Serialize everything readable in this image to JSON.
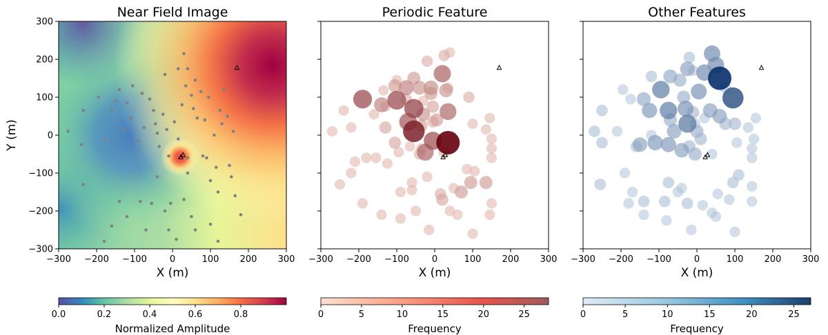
{
  "ylabel": "Y (m)",
  "chart_data": [
    {
      "type": "heatmap",
      "title": "Near Field Image",
      "xlabel": "X (m)",
      "ylabel": "Y (m)",
      "xlim": [
        -300,
        300
      ],
      "ylim": [
        -300,
        300
      ],
      "xticks": [
        -300,
        -200,
        -100,
        0,
        100,
        200,
        300
      ],
      "yticks": [
        -300,
        -200,
        -100,
        0,
        100,
        200,
        300
      ],
      "colormap": "Spectral_r",
      "colorbar": {
        "label": "Normalized Amplitude",
        "range": [
          0,
          1
        ],
        "ticks": [
          0.0,
          0.2,
          0.4,
          0.6,
          0.8
        ],
        "tick_labels": [
          "0.0",
          "0.2",
          "0.4",
          "0.6",
          "0.8"
        ]
      },
      "amplitude_features": {
        "low_center": [
          -95,
          0
        ],
        "high_corner": [
          250,
          185
        ],
        "hotspot": [
          22,
          -58
        ]
      },
      "stations": [
        [
          -235,
          65
        ],
        [
          -240,
          -25
        ],
        [
          -275,
          10
        ],
        [
          -235,
          -130
        ],
        [
          -195,
          100
        ],
        [
          -180,
          -10
        ],
        [
          -160,
          65
        ],
        [
          -150,
          90
        ],
        [
          -140,
          120
        ],
        [
          -130,
          15
        ],
        [
          -120,
          85
        ],
        [
          -110,
          45
        ],
        [
          -105,
          130
        ],
        [
          -90,
          -15
        ],
        [
          -80,
          110
        ],
        [
          -75,
          20
        ],
        [
          -60,
          95
        ],
        [
          -50,
          65
        ],
        [
          -45,
          30
        ],
        [
          -40,
          5
        ],
        [
          -35,
          -30
        ],
        [
          -25,
          55
        ],
        [
          -20,
          160
        ],
        [
          -15,
          15
        ],
        [
          -10,
          -55
        ],
        [
          5,
          35
        ],
        [
          15,
          175
        ],
        [
          15,
          -10
        ],
        [
          25,
          80
        ],
        [
          30,
          215
        ],
        [
          35,
          130
        ],
        [
          40,
          175
        ],
        [
          50,
          105
        ],
        [
          55,
          70
        ],
        [
          60,
          145
        ],
        [
          65,
          45
        ],
        [
          75,
          115
        ],
        [
          80,
          -55
        ],
        [
          85,
          40
        ],
        [
          90,
          -60
        ],
        [
          95,
          100
        ],
        [
          100,
          -120
        ],
        [
          110,
          0
        ],
        [
          115,
          -85
        ],
        [
          125,
          65
        ],
        [
          130,
          30
        ],
        [
          135,
          120
        ],
        [
          145,
          50
        ],
        [
          150,
          -80
        ],
        [
          155,
          -110
        ],
        [
          160,
          10
        ],
        [
          -140,
          -175
        ],
        [
          -120,
          -215
        ],
        [
          -85,
          -175
        ],
        [
          -55,
          -180
        ],
        [
          -40,
          -110
        ],
        [
          -20,
          -200
        ],
        [
          -5,
          -180
        ],
        [
          30,
          -170
        ],
        [
          40,
          -100
        ],
        [
          50,
          -215
        ],
        [
          -10,
          -250
        ],
        [
          100,
          -235
        ],
        [
          120,
          -150
        ],
        [
          165,
          -160
        ],
        [
          180,
          -210
        ],
        [
          60,
          -250
        ],
        [
          -180,
          -280
        ],
        [
          -70,
          -250
        ],
        [
          10,
          -275
        ],
        [
          120,
          -280
        ],
        [
          -160,
          -240
        ],
        [
          40,
          -60
        ]
      ],
      "markers": [
        [
          170,
          178
        ],
        [
          22,
          -58
        ],
        [
          28,
          -52
        ]
      ]
    },
    {
      "type": "scatter",
      "title": "Periodic Feature",
      "xlabel": "X (m)",
      "xlim": [
        -300,
        300
      ],
      "ylim": [
        -300,
        300
      ],
      "xticks": [
        -300,
        -200,
        -100,
        0,
        100,
        200,
        300
      ],
      "yticks": [
        -300,
        -200,
        -100,
        0,
        100,
        200,
        300
      ],
      "colorbar": {
        "label": "Frequency",
        "range": [
          0,
          28
        ],
        "ticks": [
          0,
          5,
          10,
          15,
          20,
          25
        ],
        "tick_labels": [
          "0",
          "5",
          "10",
          "15",
          "20",
          "25"
        ],
        "color_low": "#fee0d2",
        "color_high": "#67000d"
      },
      "points": [
        {
          "x": 35,
          "y": -20,
          "freq": 28
        },
        {
          "x": -55,
          "y": 10,
          "freq": 23
        },
        {
          "x": -190,
          "y": 95,
          "freq": 16
        },
        {
          "x": -100,
          "y": 92,
          "freq": 16
        },
        {
          "x": -55,
          "y": 70,
          "freq": 17
        },
        {
          "x": -70,
          "y": 35,
          "freq": 14
        },
        {
          "x": -5,
          "y": -15,
          "freq": 15
        },
        {
          "x": -25,
          "y": -45,
          "freq": 12
        },
        {
          "x": 20,
          "y": 162,
          "freq": 13
        },
        {
          "x": 35,
          "y": 62,
          "freq": 12
        },
        {
          "x": -140,
          "y": 80,
          "freq": 9
        },
        {
          "x": -75,
          "y": 125,
          "freq": 9
        },
        {
          "x": -10,
          "y": 125,
          "freq": 8
        },
        {
          "x": 30,
          "y": 118,
          "freq": 7
        },
        {
          "x": -40,
          "y": 125,
          "freq": 7
        },
        {
          "x": -30,
          "y": 55,
          "freq": 7
        },
        {
          "x": 5,
          "y": 40,
          "freq": 6
        },
        {
          "x": -130,
          "y": 20,
          "freq": 5
        },
        {
          "x": -105,
          "y": -20,
          "freq": 5
        },
        {
          "x": 95,
          "y": -125,
          "freq": 6
        },
        {
          "x": 135,
          "y": -125,
          "freq": 6
        },
        {
          "x": 70,
          "y": -150,
          "freq": 6
        },
        {
          "x": 20,
          "y": -170,
          "freq": 5
        },
        {
          "x": -105,
          "y": 130,
          "freq": 6
        },
        {
          "x": -55,
          "y": 150,
          "freq": 6
        },
        {
          "x": -10,
          "y": 110,
          "freq": 6
        },
        {
          "x": -5,
          "y": 75,
          "freq": 5
        },
        {
          "x": -35,
          "y": 25,
          "freq": 5
        },
        {
          "x": 25,
          "y": 210,
          "freq": 4
        },
        {
          "x": -20,
          "y": 195,
          "freq": 4
        },
        {
          "x": -5,
          "y": 35,
          "freq": 4
        },
        {
          "x": 90,
          "y": 100,
          "freq": 4
        },
        {
          "x": -40,
          "y": -50,
          "freq": 4
        },
        {
          "x": -75,
          "y": 95,
          "freq": 4
        },
        {
          "x": 25,
          "y": -45,
          "freq": 4
        },
        {
          "x": 15,
          "y": -155,
          "freq": 4
        },
        {
          "x": -130,
          "y": 75,
          "freq": 3
        },
        {
          "x": -95,
          "y": -45,
          "freq": 3
        },
        {
          "x": 35,
          "y": 125,
          "freq": 3
        },
        {
          "x": -135,
          "y": 118,
          "freq": 3
        },
        {
          "x": -155,
          "y": -60,
          "freq": 3
        },
        {
          "x": -160,
          "y": 55,
          "freq": 3
        },
        {
          "x": -220,
          "y": 20,
          "freq": 3
        },
        {
          "x": -180,
          "y": -60,
          "freq": 3
        },
        {
          "x": -210,
          "y": -70,
          "freq": 3
        },
        {
          "x": -125,
          "y": -75,
          "freq": 3
        },
        {
          "x": -30,
          "y": 90,
          "freq": 3
        },
        {
          "x": -35,
          "y": -35,
          "freq": 3
        },
        {
          "x": -65,
          "y": -30,
          "freq": 3
        },
        {
          "x": 100,
          "y": 30,
          "freq": 3
        },
        {
          "x": 145,
          "y": 45,
          "freq": 3
        },
        {
          "x": 135,
          "y": 15,
          "freq": 3
        },
        {
          "x": 150,
          "y": -10,
          "freq": 3
        },
        {
          "x": 150,
          "y": -35,
          "freq": 3
        },
        {
          "x": 150,
          "y": -60,
          "freq": 3
        },
        {
          "x": 105,
          "y": -95,
          "freq": 3
        },
        {
          "x": 85,
          "y": -90,
          "freq": 3
        },
        {
          "x": 50,
          "y": -140,
          "freq": 3
        },
        {
          "x": -90,
          "y": -150,
          "freq": 3
        },
        {
          "x": -60,
          "y": -145,
          "freq": 3
        },
        {
          "x": -20,
          "y": -110,
          "freq": 3
        },
        {
          "x": -60,
          "y": -125,
          "freq": 3
        },
        {
          "x": 40,
          "y": -200,
          "freq": 3
        },
        {
          "x": 60,
          "y": -210,
          "freq": 3
        },
        {
          "x": 145,
          "y": -210,
          "freq": 3
        },
        {
          "x": 150,
          "y": -180,
          "freq": 3
        },
        {
          "x": 100,
          "y": -260,
          "freq": 3
        },
        {
          "x": -15,
          "y": -250,
          "freq": 3
        },
        {
          "x": -50,
          "y": -200,
          "freq": 3
        },
        {
          "x": -90,
          "y": -220,
          "freq": 3
        },
        {
          "x": -140,
          "y": -210,
          "freq": 3
        },
        {
          "x": -220,
          "y": -100,
          "freq": 3
        },
        {
          "x": -250,
          "y": -130,
          "freq": 3
        },
        {
          "x": -270,
          "y": 10,
          "freq": 3
        },
        {
          "x": -240,
          "y": 65,
          "freq": 3
        },
        {
          "x": -190,
          "y": -180,
          "freq": 3
        },
        {
          "x": -100,
          "y": 145,
          "freq": 3
        },
        {
          "x": 40,
          "y": 218,
          "freq": 3
        }
      ],
      "markers": [
        [
          170,
          178
        ],
        [
          22,
          -58
        ],
        [
          28,
          -52
        ]
      ]
    },
    {
      "type": "scatter",
      "title": "Other Features",
      "xlabel": "X (m)",
      "xlim": [
        -300,
        300
      ],
      "ylim": [
        -300,
        300
      ],
      "xticks": [
        -300,
        -200,
        -100,
        0,
        100,
        200,
        300
      ],
      "yticks": [
        -300,
        -200,
        -100,
        0,
        100,
        200,
        300
      ],
      "colorbar": {
        "label": "Frequency",
        "range": [
          0,
          27
        ],
        "ticks": [
          0,
          5,
          10,
          15,
          20,
          25
        ],
        "tick_labels": [
          "0",
          "5",
          "10",
          "15",
          "20",
          "25"
        ],
        "color_low": "#deebf7",
        "color_high": "#08306b"
      },
      "points": [
        {
          "x": 60,
          "y": 150,
          "freq": 27
        },
        {
          "x": 95,
          "y": 98,
          "freq": 21
        },
        {
          "x": -25,
          "y": 30,
          "freq": 14
        },
        {
          "x": -95,
          "y": 120,
          "freq": 13
        },
        {
          "x": -75,
          "y": 65,
          "freq": 13
        },
        {
          "x": 40,
          "y": 215,
          "freq": 11
        },
        {
          "x": 20,
          "y": 165,
          "freq": 11
        },
        {
          "x": 50,
          "y": 185,
          "freq": 11
        },
        {
          "x": -30,
          "y": 70,
          "freq": 10
        },
        {
          "x": 5,
          "y": 115,
          "freq": 10
        },
        {
          "x": -125,
          "y": 65,
          "freq": 9
        },
        {
          "x": -110,
          "y": -20,
          "freq": 9
        },
        {
          "x": -75,
          "y": -25,
          "freq": 9
        },
        {
          "x": -60,
          "y": 10,
          "freq": 8
        },
        {
          "x": -40,
          "y": -40,
          "freq": 8
        },
        {
          "x": -150,
          "y": -25,
          "freq": 8
        },
        {
          "x": 35,
          "y": 65,
          "freq": 8
        },
        {
          "x": -25,
          "y": 175,
          "freq": 8
        },
        {
          "x": 60,
          "y": 50,
          "freq": 8
        },
        {
          "x": -140,
          "y": 95,
          "freq": 7
        },
        {
          "x": -70,
          "y": 155,
          "freq": 7
        },
        {
          "x": 0,
          "y": 10,
          "freq": 6
        },
        {
          "x": -45,
          "y": 145,
          "freq": 6
        },
        {
          "x": -5,
          "y": -50,
          "freq": 6
        },
        {
          "x": -70,
          "y": 40,
          "freq": 6
        },
        {
          "x": -35,
          "y": 100,
          "freq": 6
        },
        {
          "x": 75,
          "y": 30,
          "freq": 5
        },
        {
          "x": -10,
          "y": 60,
          "freq": 5
        },
        {
          "x": -20,
          "y": -30,
          "freq": 5
        },
        {
          "x": 100,
          "y": 30,
          "freq": 5
        },
        {
          "x": 10,
          "y": -10,
          "freq": 5
        },
        {
          "x": -250,
          "y": 65,
          "freq": 4
        },
        {
          "x": 110,
          "y": -105,
          "freq": 4
        },
        {
          "x": 95,
          "y": -125,
          "freq": 4
        },
        {
          "x": -120,
          "y": 155,
          "freq": 4
        },
        {
          "x": -160,
          "y": -30,
          "freq": 4
        },
        {
          "x": -270,
          "y": 10,
          "freq": 4
        },
        {
          "x": -250,
          "y": -20,
          "freq": 4
        },
        {
          "x": -20,
          "y": 205,
          "freq": 4
        },
        {
          "x": 75,
          "y": 125,
          "freq": 4
        },
        {
          "x": -75,
          "y": -125,
          "freq": 4
        },
        {
          "x": -255,
          "y": -130,
          "freq": 4
        },
        {
          "x": -25,
          "y": -180,
          "freq": 4
        },
        {
          "x": -85,
          "y": -175,
          "freq": 4
        },
        {
          "x": -140,
          "y": -175,
          "freq": 4
        },
        {
          "x": -40,
          "y": -140,
          "freq": 3
        },
        {
          "x": -10,
          "y": 170,
          "freq": 3
        },
        {
          "x": 20,
          "y": 45,
          "freq": 3
        },
        {
          "x": -175,
          "y": 95,
          "freq": 3
        },
        {
          "x": -195,
          "y": 120,
          "freq": 3
        },
        {
          "x": -210,
          "y": 10,
          "freq": 3
        },
        {
          "x": -190,
          "y": -100,
          "freq": 3
        },
        {
          "x": -170,
          "y": -150,
          "freq": 3
        },
        {
          "x": -140,
          "y": -210,
          "freq": 3
        },
        {
          "x": -180,
          "y": -180,
          "freq": 3
        },
        {
          "x": -50,
          "y": -150,
          "freq": 3
        },
        {
          "x": 15,
          "y": -185,
          "freq": 3
        },
        {
          "x": 55,
          "y": -155,
          "freq": 3
        },
        {
          "x": 40,
          "y": -205,
          "freq": 3
        },
        {
          "x": 85,
          "y": -170,
          "freq": 3
        },
        {
          "x": 145,
          "y": -175,
          "freq": 3
        },
        {
          "x": 145,
          "y": -135,
          "freq": 3
        },
        {
          "x": 145,
          "y": -35,
          "freq": 3
        },
        {
          "x": 145,
          "y": -60,
          "freq": 3
        },
        {
          "x": 150,
          "y": -10,
          "freq": 3
        },
        {
          "x": 155,
          "y": 45,
          "freq": 3
        },
        {
          "x": 135,
          "y": 20,
          "freq": 3
        },
        {
          "x": 105,
          "y": -20,
          "freq": 3
        },
        {
          "x": 40,
          "y": -50,
          "freq": 3
        },
        {
          "x": -15,
          "y": -250,
          "freq": 3
        },
        {
          "x": -80,
          "y": -225,
          "freq": 3
        },
        {
          "x": 100,
          "y": -255,
          "freq": 3
        },
        {
          "x": 50,
          "y": -215,
          "freq": 3
        },
        {
          "x": -120,
          "y": 0,
          "freq": 3
        },
        {
          "x": -5,
          "y": 30,
          "freq": 3
        }
      ],
      "markers": [
        [
          170,
          178
        ],
        [
          22,
          -58
        ],
        [
          28,
          -52
        ]
      ]
    }
  ]
}
